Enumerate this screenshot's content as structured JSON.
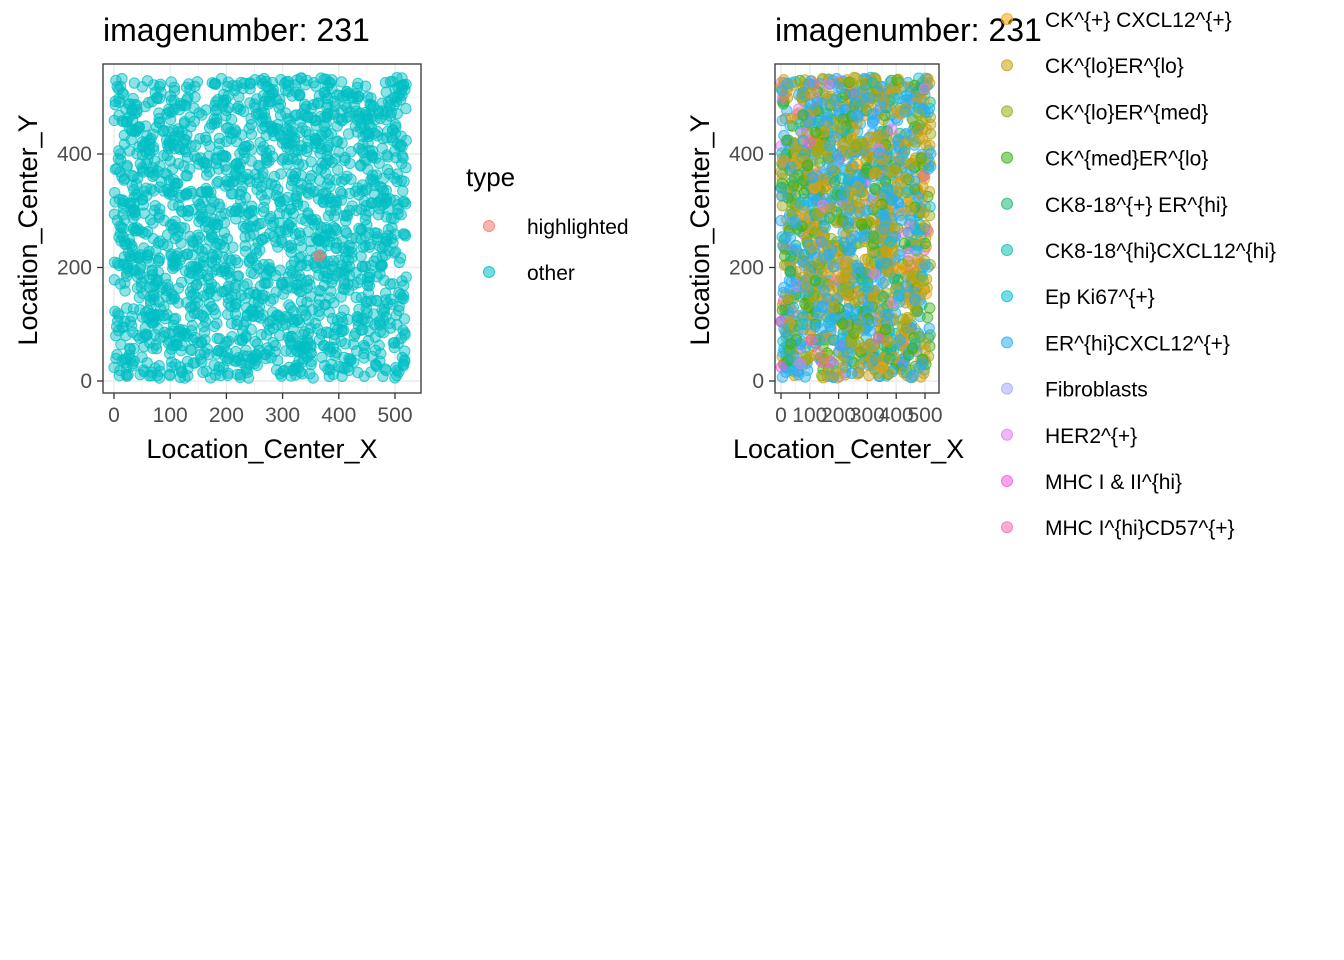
{
  "chart_data": [
    {
      "type": "scatter",
      "title": "imagenumber:  231",
      "xlabel": "Location_Center_X",
      "ylabel": "Location_Center_Y",
      "xlim": [
        -20,
        545
      ],
      "ylim": [
        -20,
        560
      ],
      "x_ticks": [
        0,
        100,
        200,
        300,
        400,
        500
      ],
      "y_ticks": [
        0,
        200,
        400
      ],
      "x_tick_labels": [
        "0",
        "100",
        "200",
        "300",
        "400",
        "500"
      ],
      "y_tick_labels": [
        "0",
        "200",
        "400"
      ],
      "grid": true,
      "legend": {
        "title": "type",
        "placement": "right",
        "entries": [
          {
            "label": "highlighted",
            "color": "#F8766D"
          },
          {
            "label": "other",
            "color": "#00BFC4"
          }
        ]
      },
      "series": [
        {
          "name": "highlighted",
          "color": "#F8766D",
          "points": [
            [
              365,
              220
            ]
          ]
        },
        {
          "name": "other",
          "color": "#00BFC4",
          "x_range": [
            0,
            520
          ],
          "y_range": [
            5,
            535
          ],
          "approx_count": 1900
        }
      ]
    },
    {
      "type": "scatter",
      "title": "imagenumber:  231",
      "xlabel": "Location_Center_X",
      "ylabel": "Location_Center_Y",
      "xlim": [
        -20,
        545
      ],
      "ylim": [
        -20,
        560
      ],
      "x_ticks": [
        0,
        100,
        200,
        300,
        400,
        500
      ],
      "y_ticks": [
        0,
        200,
        400
      ],
      "x_tick_labels": [
        "0",
        "100",
        "200",
        "300",
        "400",
        "500"
      ],
      "y_tick_labels": [
        "0",
        "200",
        "400"
      ],
      "grid": true,
      "legend": {
        "placement": "right",
        "entries": [
          {
            "label": "CK^{+} CXCL12^{+}",
            "color": "#F8A40D"
          },
          {
            "label": "CK^{lo}ER^{lo}",
            "color": "#C9A012"
          },
          {
            "label": "CK^{lo}ER^{med}",
            "color": "#9EAC1A"
          },
          {
            "label": "CK^{med}ER^{lo}",
            "color": "#3DB216"
          },
          {
            "label": "CK8-18^{+} ER^{hi}",
            "color": "#1DBA78"
          },
          {
            "label": "CK8-18^{hi}CXCL12^{hi}",
            "color": "#12BFB0"
          },
          {
            "label": "Ep Ki67^{+}",
            "color": "#0AC0D6"
          },
          {
            "label": "ER^{hi}CXCL12^{+}",
            "color": "#2AAEF5"
          },
          {
            "label": "Fibroblasts",
            "color": "#A7A7FF"
          },
          {
            "label": "HER2^{+}",
            "color": "#E27CF7"
          },
          {
            "label": "MHC I & II^{hi}",
            "color": "#F25ADF"
          },
          {
            "label": "MHC I^{hi}CD57^{+}",
            "color": "#F76BB0"
          }
        ]
      },
      "series_mix_weights": [
        [
          "#C9A012",
          0.26
        ],
        [
          "#2AAEF5",
          0.28
        ],
        [
          "#3DB216",
          0.15
        ],
        [
          "#9EAC1A",
          0.12
        ],
        [
          "#0AC0D6",
          0.07
        ],
        [
          "#1DBA78",
          0.04
        ],
        [
          "#F8A40D",
          0.03
        ],
        [
          "#E27CF7",
          0.02
        ],
        [
          "#F76BB0",
          0.015
        ],
        [
          "#F25ADF",
          0.01
        ],
        [
          "#A7A7FF",
          0.005
        ],
        [
          "#12BFB0",
          0.005
        ]
      ],
      "approx_count": 1900
    }
  ]
}
